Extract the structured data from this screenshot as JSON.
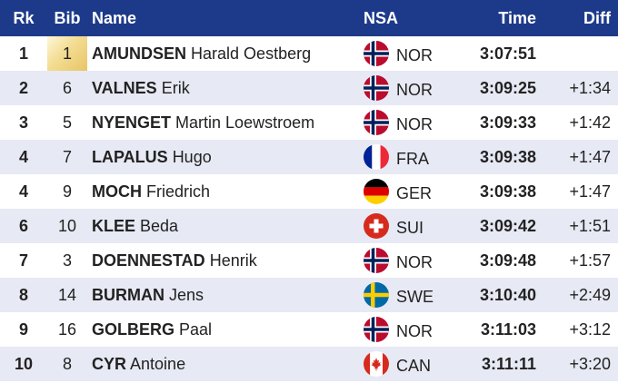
{
  "header": {
    "rank": "Rk",
    "bib": "Bib",
    "name": "Name",
    "nsa": "NSA",
    "time": "Time",
    "diff": "Diff"
  },
  "colors": {
    "header_bg": "#1d3a8a",
    "alt_row": "#e7e9f4",
    "gold_bib": "#f3dc92"
  },
  "rows": [
    {
      "rank": "1",
      "bib": "1",
      "last": "AMUNDSEN",
      "first": "Harald Oestberg",
      "nsa": "NOR",
      "flag": "norway-flag-icon",
      "time": "3:07:51",
      "diff": ""
    },
    {
      "rank": "2",
      "bib": "6",
      "last": "VALNES",
      "first": "Erik",
      "nsa": "NOR",
      "flag": "norway-flag-icon",
      "time": "3:09:25",
      "diff": "+1:34"
    },
    {
      "rank": "3",
      "bib": "5",
      "last": "NYENGET",
      "first": "Martin Loewstroem",
      "nsa": "NOR",
      "flag": "norway-flag-icon",
      "time": "3:09:33",
      "diff": "+1:42"
    },
    {
      "rank": "4",
      "bib": "7",
      "last": "LAPALUS",
      "first": "Hugo",
      "nsa": "FRA",
      "flag": "france-flag-icon",
      "time": "3:09:38",
      "diff": "+1:47"
    },
    {
      "rank": "4",
      "bib": "9",
      "last": "MOCH",
      "first": "Friedrich",
      "nsa": "GER",
      "flag": "germany-flag-icon",
      "time": "3:09:38",
      "diff": "+1:47"
    },
    {
      "rank": "6",
      "bib": "10",
      "last": "KLEE",
      "first": "Beda",
      "nsa": "SUI",
      "flag": "switzerland-flag-icon",
      "time": "3:09:42",
      "diff": "+1:51"
    },
    {
      "rank": "7",
      "bib": "3",
      "last": "DOENNESTAD",
      "first": "Henrik",
      "nsa": "NOR",
      "flag": "norway-flag-icon",
      "time": "3:09:48",
      "diff": "+1:57"
    },
    {
      "rank": "8",
      "bib": "14",
      "last": "BURMAN",
      "first": "Jens",
      "nsa": "SWE",
      "flag": "sweden-flag-icon",
      "time": "3:10:40",
      "diff": "+2:49"
    },
    {
      "rank": "9",
      "bib": "16",
      "last": "GOLBERG",
      "first": "Paal",
      "nsa": "NOR",
      "flag": "norway-flag-icon",
      "time": "3:11:03",
      "diff": "+3:12"
    },
    {
      "rank": "10",
      "bib": "8",
      "last": "CYR",
      "first": "Antoine",
      "nsa": "CAN",
      "flag": "canada-flag-icon",
      "time": "3:11:11",
      "diff": "+3:20"
    }
  ]
}
